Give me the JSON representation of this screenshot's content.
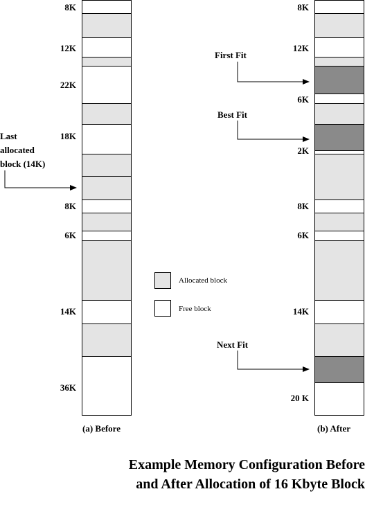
{
  "before": {
    "caption": "(a) Before",
    "sizes": [
      "8K",
      "12K",
      "22K",
      "18K",
      "8K",
      "6K",
      "14K",
      "36K"
    ],
    "last_allocated_label": [
      "Last",
      "allocated",
      "block (14K)"
    ]
  },
  "after": {
    "caption": "(b) After",
    "sizes": [
      "8K",
      "12K",
      "6K",
      "2K",
      "8K",
      "6K",
      "14K",
      "20 K"
    ],
    "first_fit_label": "First Fit",
    "best_fit_label": "Best Fit",
    "next_fit_label": "Next Fit"
  },
  "legend": {
    "allocated_label": "Allocated block",
    "free_label": "Free block"
  },
  "title": {
    "line1": "Example Memory Configuration Before",
    "line2": "and After Allocation of 16 Kbyte Block"
  },
  "colors": {
    "allocated": "#e4e4e4",
    "free": "#ffffff",
    "newly_allocated": "#8a8a8a"
  }
}
